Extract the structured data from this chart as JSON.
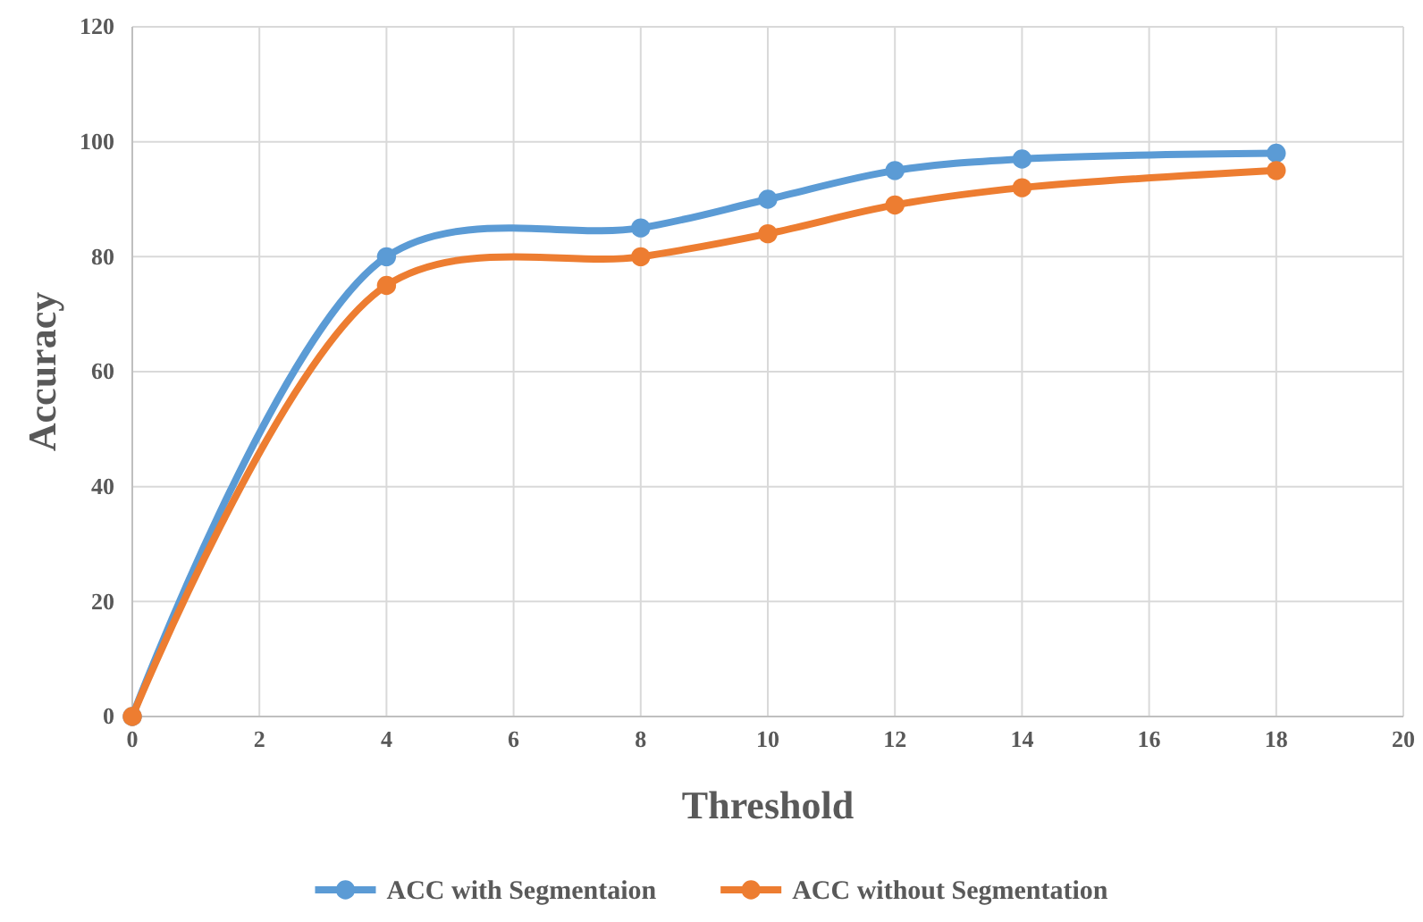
{
  "chart_data": {
    "type": "line",
    "xlabel": "Threshold",
    "ylabel": "Accuracy",
    "x": [
      0,
      4,
      8,
      10,
      12,
      14,
      18
    ],
    "series": [
      {
        "name": "ACC with Segmentaion",
        "color": "#5b9bd5",
        "values": [
          0,
          80,
          85,
          90,
          95,
          97,
          98
        ]
      },
      {
        "name": "ACC without Segmentation",
        "color": "#ed7d31",
        "values": [
          0,
          75,
          80,
          84,
          89,
          92,
          95
        ]
      }
    ],
    "xlim": [
      0,
      20
    ],
    "xticks": [
      0,
      2,
      4,
      6,
      8,
      10,
      12,
      14,
      16,
      18,
      20
    ],
    "ylim": [
      0,
      120
    ],
    "yticks": [
      0,
      20,
      40,
      60,
      80,
      100,
      120
    ],
    "grid": true,
    "legend": "bottom",
    "marker": "circle",
    "line_style": "solid"
  }
}
